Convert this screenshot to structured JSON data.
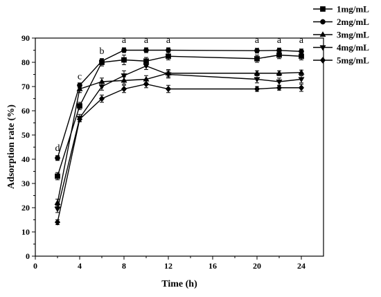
{
  "chart_data": {
    "type": "line",
    "title": "",
    "xlabel": "Time (h)",
    "ylabel": "Adsorption rate (%)",
    "xlim": [
      0,
      26
    ],
    "ylim": [
      0,
      90
    ],
    "xticks": [
      0,
      4,
      8,
      12,
      16,
      20,
      24
    ],
    "yticks": [
      0,
      10,
      20,
      30,
      40,
      50,
      60,
      70,
      80,
      90
    ],
    "grid": false,
    "legend_position": "top-right",
    "x": [
      2,
      4,
      6,
      8,
      10,
      12,
      20,
      22,
      24
    ],
    "series": [
      {
        "name": "1mg/mL",
        "marker": "square",
        "values": [
          33,
          62,
          80,
          81,
          80.5,
          82.5,
          81.5,
          83,
          82.5
        ],
        "errors": [
          1.5,
          1.5,
          1.5,
          2,
          1.5,
          1.5,
          1.5,
          1.5,
          1.5
        ]
      },
      {
        "name": "2mg/mL",
        "marker": "circle",
        "values": [
          40.5,
          70.5,
          80.5,
          85,
          85,
          85,
          84.8,
          84.9,
          84.5
        ],
        "errors": [
          1,
          1,
          1,
          1,
          1,
          1,
          1,
          1,
          1
        ]
      },
      {
        "name": "3mg/mL",
        "marker": "triangle-up",
        "values": [
          22,
          69,
          72,
          72.5,
          73,
          75.5,
          75.5,
          75.5,
          75.8
        ],
        "errors": [
          1.5,
          1.5,
          1.5,
          1.5,
          1.5,
          1.5,
          1,
          1,
          1
        ]
      },
      {
        "name": "4mg/mL",
        "marker": "triangle-down",
        "values": [
          19.5,
          57,
          70,
          74.5,
          78.5,
          75,
          73,
          72,
          73
        ],
        "errors": [
          1.5,
          1.5,
          1.5,
          2,
          1.5,
          1.5,
          1.5,
          1.5,
          1.5
        ]
      },
      {
        "name": "5mg/mL",
        "marker": "diamond",
        "values": [
          14,
          56.5,
          65,
          69,
          71,
          69,
          69,
          69.5,
          69.5
        ],
        "errors": [
          1,
          1,
          1.5,
          1.5,
          1.5,
          1.5,
          1,
          1,
          1.5
        ]
      }
    ],
    "annotations": [
      {
        "text": "d",
        "x": 2,
        "y": 43.5
      },
      {
        "text": "c",
        "x": 4,
        "y": 73
      },
      {
        "text": "b",
        "x": 6,
        "y": 83.5
      },
      {
        "text": "a",
        "x": 8,
        "y": 88
      },
      {
        "text": "a",
        "x": 10,
        "y": 88
      },
      {
        "text": "a",
        "x": 12,
        "y": 88
      },
      {
        "text": "a",
        "x": 20,
        "y": 88
      },
      {
        "text": "a",
        "x": 22,
        "y": 88
      },
      {
        "text": "a",
        "x": 24,
        "y": 88
      }
    ]
  }
}
